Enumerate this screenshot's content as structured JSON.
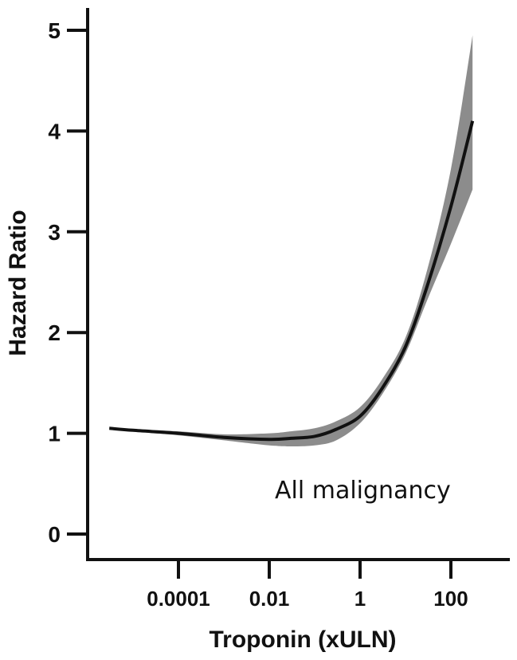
{
  "chart_data": {
    "type": "line",
    "title": "",
    "xlabel": "Troponin (xULN)",
    "ylabel": "Hazard Ratio",
    "x_scale": "log",
    "xlim": [
      2e-06,
      1000
    ],
    "ylim": [
      0,
      5.3
    ],
    "x_ticks": [
      {
        "value": 0.0001,
        "label": "0.0001"
      },
      {
        "value": 0.01,
        "label": "0.01"
      },
      {
        "value": 1,
        "label": "1"
      },
      {
        "value": 100,
        "label": "100"
      }
    ],
    "y_ticks": [
      {
        "value": 0,
        "label": "0"
      },
      {
        "value": 1,
        "label": "1"
      },
      {
        "value": 2,
        "label": "2"
      },
      {
        "value": 3,
        "label": "3"
      },
      {
        "value": 4,
        "label": "4"
      },
      {
        "value": 5,
        "label": "5"
      }
    ],
    "grid": false,
    "legend": "none",
    "annotation": "All malignancy",
    "series": [
      {
        "x": [
          3e-06,
          1e-05,
          0.0001,
          0.001,
          0.01,
          0.03,
          0.1,
          0.3,
          1,
          3,
          10,
          30,
          100,
          300
        ],
        "y": [
          1.05,
          1.03,
          1.0,
          0.96,
          0.94,
          0.95,
          0.97,
          1.04,
          1.17,
          1.44,
          1.86,
          2.46,
          3.25,
          4.1
        ],
        "lower": [
          1.05,
          1.02,
          0.98,
          0.93,
          0.88,
          0.87,
          0.88,
          0.93,
          1.1,
          1.38,
          1.79,
          2.32,
          2.88,
          3.42
        ],
        "upper": [
          1.05,
          1.04,
          1.02,
          0.99,
          1.0,
          1.02,
          1.05,
          1.12,
          1.26,
          1.53,
          1.95,
          2.62,
          3.62,
          4.95
        ]
      }
    ],
    "colors": {
      "line": "#111111",
      "band": "#8c8c8c",
      "axis": "#111111"
    }
  }
}
